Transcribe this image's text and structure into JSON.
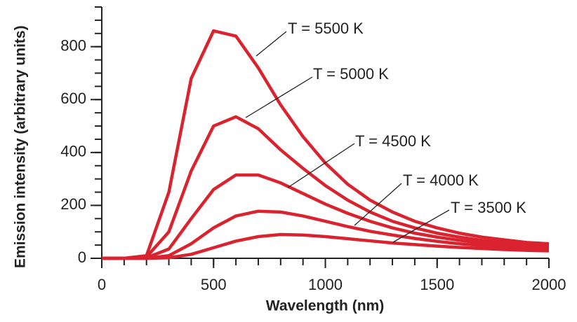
{
  "chart_data": {
    "type": "line",
    "x_label": "Wavelength (nm)",
    "y_label": "Emission intensity (arbitrary units)",
    "x": [
      0,
      100,
      200,
      300,
      400,
      500,
      600,
      700,
      800,
      900,
      1000,
      1100,
      1200,
      1300,
      1400,
      1500,
      1600,
      1700,
      1800,
      1900,
      2000
    ],
    "series": [
      {
        "name": "T = 5500 K",
        "color": "#d9232e",
        "values": [
          0,
          0,
          10,
          250,
          680,
          860,
          840,
          720,
          580,
          460,
          360,
          280,
          220,
          175,
          140,
          115,
          95,
          80,
          70,
          60,
          55
        ]
      },
      {
        "name": "T = 5000 K",
        "color": "#d9232e",
        "values": [
          0,
          0,
          5,
          100,
          330,
          500,
          535,
          490,
          410,
          340,
          275,
          220,
          175,
          140,
          115,
          95,
          80,
          68,
          60,
          52,
          47
        ]
      },
      {
        "name": "T = 4500 K",
        "color": "#d9232e",
        "values": [
          0,
          0,
          2,
          35,
          150,
          260,
          315,
          315,
          285,
          245,
          205,
          170,
          140,
          115,
          95,
          80,
          68,
          58,
          50,
          44,
          40
        ]
      },
      {
        "name": "T = 4000 K",
        "color": "#d9232e",
        "values": [
          0,
          0,
          0,
          10,
          55,
          115,
          160,
          178,
          175,
          160,
          140,
          120,
          102,
          88,
          75,
          64,
          55,
          48,
          42,
          38,
          34
        ]
      },
      {
        "name": "T = 3500 K",
        "color": "#d9232e",
        "values": [
          0,
          0,
          0,
          2,
          15,
          40,
          65,
          82,
          90,
          88,
          82,
          74,
          66,
          58,
          52,
          46,
          41,
          37,
          33,
          30,
          28
        ]
      }
    ],
    "xlim": [
      0,
      2000
    ],
    "xticks": [
      0,
      500,
      1000,
      1500,
      2000
    ],
    "ylim": [
      0,
      950
    ],
    "yticks": [
      0,
      200,
      400,
      600,
      800
    ],
    "grid": false
  }
}
